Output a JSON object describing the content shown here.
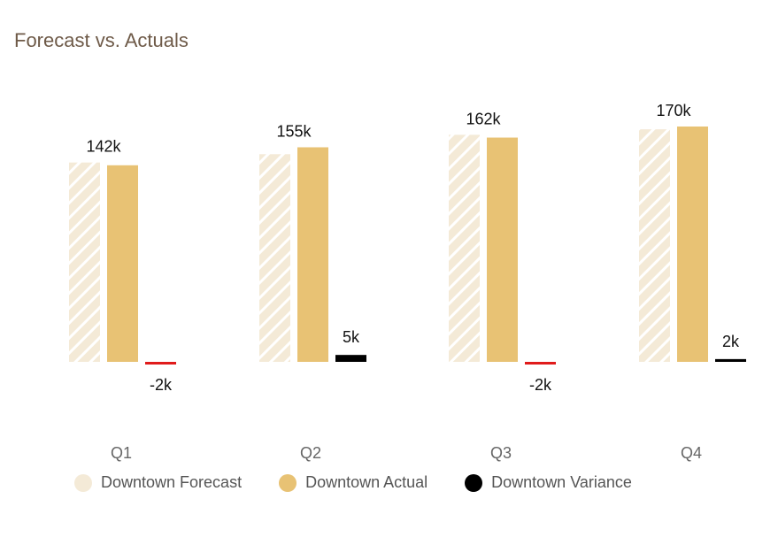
{
  "title": "Forecast vs. Actuals",
  "chart_data": {
    "type": "bar",
    "title": "Forecast vs. Actuals",
    "categories": [
      "Q1",
      "Q2",
      "Q3",
      "Q4"
    ],
    "series": [
      {
        "name": "Downtown Forecast",
        "values": [
          144,
          150,
          164,
          168
        ],
        "color": "#f4ead7",
        "pattern": "diagonal-hatch"
      },
      {
        "name": "Downtown Actual",
        "values": [
          142,
          155,
          162,
          170
        ],
        "color": "#e8c274",
        "labels": [
          "142k",
          "155k",
          "162k",
          "170k"
        ]
      },
      {
        "name": "Downtown Variance",
        "values": [
          -2,
          5,
          -2,
          2
        ],
        "labels": [
          "-2k",
          "5k",
          "-2k",
          "2k"
        ],
        "positive_color": "#000000",
        "negative_color": "#e01b1b"
      }
    ],
    "ylim": [
      0,
      170
    ],
    "grid": false,
    "legend_position": "bottom"
  }
}
